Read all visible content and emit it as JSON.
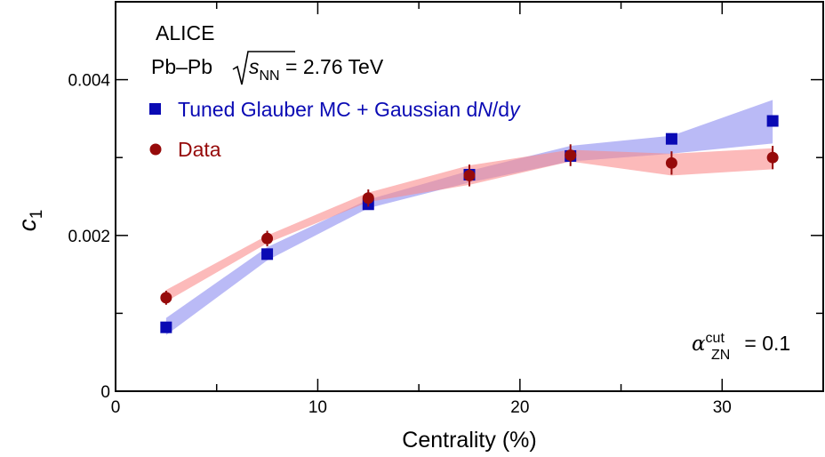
{
  "chart_data": {
    "type": "scatter",
    "title": "",
    "xlabel": "Centrality (%)",
    "ylabel_main": "c",
    "ylabel_sub": "1",
    "xlim": [
      0,
      35
    ],
    "ylim": [
      0,
      0.005
    ],
    "x_ticks": [
      0,
      10,
      20,
      30
    ],
    "x_tick_labels": [
      "0",
      "10",
      "20",
      "30"
    ],
    "y_ticks": [
      0,
      0.002,
      0.004
    ],
    "y_tick_labels": [
      "0",
      "0.002",
      "0.004"
    ],
    "grid": false,
    "legend_position": "top-left",
    "annotations": {
      "experiment": "ALICE",
      "system_prefix": "Pb–Pb ",
      "sqrt_s_var": "s",
      "sqrt_s_sub": "NN",
      "sqrt_s_value": " = 2.76 TeV",
      "alpha_symbol": "α",
      "alpha_sup": "cut",
      "alpha_sub": "ZN",
      "alpha_value": " = 0.1"
    },
    "series": [
      {
        "name": "Tuned Glauber MC + Gaussian dN/dy",
        "legend_parts": [
          "Tuned Glauber MC + Gaussian d",
          "N",
          "/d",
          "y"
        ],
        "marker": "square",
        "color": "#0a0ab4",
        "band_color": "#8c8cf0",
        "x": [
          2.5,
          7.5,
          12.5,
          17.5,
          22.5,
          27.5,
          32.5
        ],
        "y": [
          0.00082,
          0.00176,
          0.0024,
          0.00278,
          0.00302,
          0.00324,
          0.00347
        ],
        "band_low": [
          0.00072,
          0.00168,
          0.00235,
          0.00268,
          0.00295,
          0.00305,
          0.00318
        ],
        "band_high": [
          0.00094,
          0.00185,
          0.00246,
          0.00283,
          0.00315,
          0.00328,
          0.00374
        ]
      },
      {
        "name": "Data",
        "legend_parts": [
          "Data"
        ],
        "marker": "circle",
        "color": "#960a0a",
        "band_color": "#fa8c8c",
        "x": [
          2.5,
          7.5,
          12.5,
          17.5,
          22.5,
          27.5,
          32.5
        ],
        "y": [
          0.0012,
          0.00196,
          0.00248,
          0.00277,
          0.00303,
          0.00293,
          0.003
        ],
        "y_err": [
          9e-05,
          0.0001,
          0.00011,
          0.00014,
          0.00014,
          0.00015,
          0.00015
        ],
        "band_low": [
          0.00115,
          0.0019,
          0.00243,
          0.00265,
          0.00295,
          0.00277,
          0.00285
        ],
        "band_high": [
          0.0013,
          0.002,
          0.00255,
          0.0029,
          0.0031,
          0.00305,
          0.00312
        ]
      }
    ]
  }
}
